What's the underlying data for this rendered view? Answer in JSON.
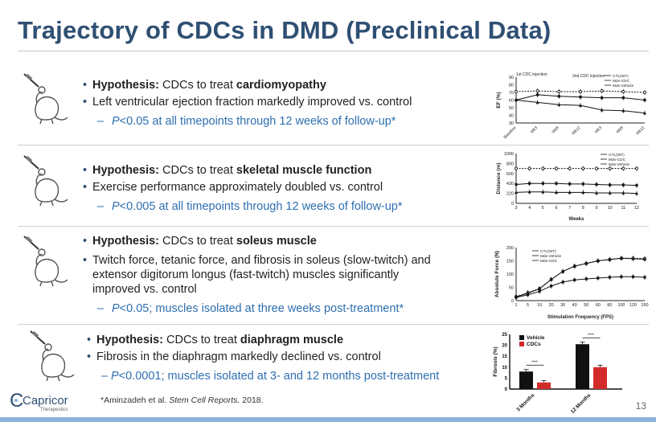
{
  "title": "Trajectory of CDCs in DMD (Preclinical Data)",
  "sections": [
    {
      "hyp_prefix": "Hypothesis:",
      "hyp_text": " CDCs to treat ",
      "hyp_bold": "cardiomyopathy",
      "bullet2": "Left ventricular ejection fraction markedly improved vs. control",
      "sub_p": "P",
      "sub_rest": "<0.05 at all timepoints through 12 weeks of follow-up*"
    },
    {
      "hyp_prefix": "Hypothesis:",
      "hyp_text": " CDCs to treat ",
      "hyp_bold": "skeletal muscle function",
      "bullet2": "Exercise performance approximately doubled vs. control",
      "sub_p": "P",
      "sub_rest": "<0.005 at all timepoints through 12 weeks of follow-up*"
    },
    {
      "hyp_prefix": "Hypothesis:",
      "hyp_text": " CDCs to treat ",
      "hyp_bold": "soleus muscle",
      "bullet2": "Twitch force, tetanic force, and fibrosis in soleus (slow-twitch) and extensor digitorum longus (fast-twitch) muscles significantly improved vs. control",
      "sub_p": "P",
      "sub_rest": "<0.05; muscles isolated at three weeks post-treatment*"
    },
    {
      "hyp_prefix": "Hypothesis:",
      "hyp_text": " CDCs to treat ",
      "hyp_bold": "diaphragm muscle",
      "bullet2": "Fibrosis in the diaphragm markedly declined vs. control",
      "sub_p": "P",
      "sub_rest": "<0.0001; muscles isolated at 3- and 12 months post-treatment"
    }
  ],
  "chart_data": [
    {
      "type": "line",
      "ylabel": "EF (%)",
      "ylim": [
        30,
        90
      ],
      "yticks": [
        "30",
        "40",
        "50",
        "60",
        "70",
        "80",
        "90"
      ],
      "categories": [
        "Baseline",
        "Wk3",
        "Wk8",
        "Wk12",
        "Wk3",
        "Wk8",
        "Wk12"
      ],
      "annotations": [
        "1st CDC injection",
        "2nd CDC injection"
      ],
      "legend": [
        "CTL(WT)",
        "Mdx-CDC",
        "Mdx-Vehicle"
      ],
      "series": [
        {
          "name": "CTL(WT)",
          "values": [
            71,
            72,
            71,
            71,
            72,
            71,
            70
          ]
        },
        {
          "name": "Mdx-CDC",
          "values": [
            60,
            67,
            65,
            64,
            63,
            63,
            60
          ]
        },
        {
          "name": "Mdx-Vehicle",
          "values": [
            60,
            57,
            54,
            53,
            47,
            46,
            43
          ]
        }
      ]
    },
    {
      "type": "line",
      "ylabel": "Distance (m)",
      "xlabel": "Weeks",
      "ylim": [
        0,
        1000
      ],
      "yticks": [
        "0",
        "220",
        "430",
        "600",
        "800",
        "1000"
      ],
      "categories": [
        "3",
        "4",
        "5",
        "6",
        "7",
        "8",
        "9",
        "10",
        "11",
        "12"
      ],
      "legend": [
        "CTL(WT)",
        "Mdx-CDC",
        "Mdx-Vehicle"
      ],
      "series": [
        {
          "name": "CTL(WT)",
          "values": [
            700,
            700,
            700,
            700,
            700,
            700,
            700,
            700,
            700,
            700
          ]
        },
        {
          "name": "Mdx-CDC",
          "values": [
            380,
            400,
            400,
            400,
            390,
            390,
            380,
            370,
            370,
            360
          ]
        },
        {
          "name": "Mdx-Vehicle",
          "values": [
            220,
            230,
            230,
            220,
            220,
            220,
            210,
            210,
            210,
            200
          ]
        }
      ]
    },
    {
      "type": "line",
      "ylabel": "Absolute Force (N)",
      "xlabel": "Stimulation Frequency (FPS)",
      "ylim": [
        0,
        200
      ],
      "yticks": [
        "0",
        "50",
        "100",
        "150",
        "200"
      ],
      "categories": [
        "1",
        "5",
        "10",
        "20",
        "30",
        "40",
        "50",
        "60",
        "80",
        "100",
        "120",
        "150"
      ],
      "legend": [
        "CTL(WT)",
        "Mdx-Vehicle",
        "Mdx-CDC"
      ],
      "series": [
        {
          "name": "CTL(WT)",
          "values": [
            15,
            30,
            45,
            80,
            110,
            130,
            140,
            150,
            155,
            160,
            160,
            158
          ]
        },
        {
          "name": "Mdx-Vehicle",
          "values": [
            12,
            22,
            35,
            55,
            70,
            78,
            82,
            85,
            88,
            90,
            90,
            88
          ]
        },
        {
          "name": "Mdx-CDC",
          "values": [
            14,
            28,
            45,
            80,
            110,
            130,
            140,
            150,
            155,
            160,
            158,
            156
          ]
        }
      ]
    },
    {
      "type": "bar",
      "ylabel": "Fibrosis (%)",
      "ylim": [
        0,
        25
      ],
      "yticks": [
        "0",
        "5",
        "10",
        "15",
        "20",
        "25"
      ],
      "categories": [
        "3 Months",
        "12 Months"
      ],
      "legend": [
        "Vehicle",
        "CDCs"
      ],
      "significance": "****",
      "series": [
        {
          "name": "Vehicle",
          "values": [
            8,
            20.5
          ]
        },
        {
          "name": "CDCs",
          "values": [
            3,
            10
          ]
        }
      ]
    }
  ],
  "footnote_prefix": "*Aminzadeh et al. ",
  "footnote_journal": "Stem Cell Reports.",
  "footnote_year": " 2018.",
  "logo_text": "Capricor",
  "logo_sub": "Therapeutics",
  "page_number": "13",
  "colors": {
    "title": "#2f4f73",
    "subpoint": "#2e6fb0",
    "accent": "#8bb3da",
    "vehicle": "#111111",
    "cdc": "#d32b2b"
  }
}
